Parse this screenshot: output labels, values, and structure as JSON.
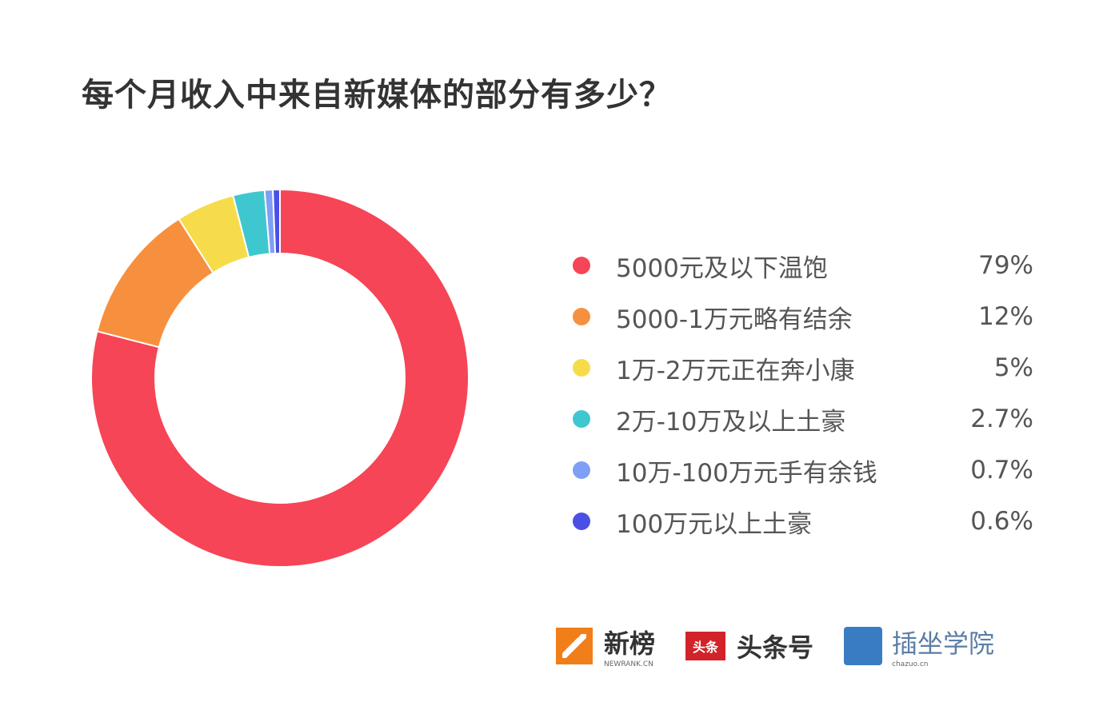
{
  "chart_data": {
    "type": "pie",
    "donut": true,
    "title": "每个月收入中来自新媒体的部分有多少？",
    "start": "top",
    "direction": "clockwise",
    "legend_position": "right",
    "slices": [
      {
        "label": "5000元及以下温饱",
        "value": 79,
        "display": "79%",
        "color": "#f64556"
      },
      {
        "label": "5000-1万元略有结余",
        "value": 12,
        "display": "12%",
        "color": "#f7903e"
      },
      {
        "label": "1万-2万元正在奔小康",
        "value": 5,
        "display": "5%",
        "color": "#f6dc4a"
      },
      {
        "label": "2万-10万及以上土豪",
        "value": 2.7,
        "display": "2.7%",
        "color": "#3fc7cf"
      },
      {
        "label": "10万-100万元手有余钱",
        "value": 0.7,
        "display": "0.7%",
        "color": "#7f9ef5"
      },
      {
        "label": "100万元以上土豪",
        "value": 0.6,
        "display": "0.6%",
        "color": "#4a4fe6"
      }
    ]
  },
  "logos": [
    {
      "name": "新榜",
      "sub": "NEWRANK.CN"
    },
    {
      "name": "头条号",
      "badge": "头条"
    },
    {
      "name": "插坐学院",
      "sub": "chazuo.cn"
    }
  ]
}
